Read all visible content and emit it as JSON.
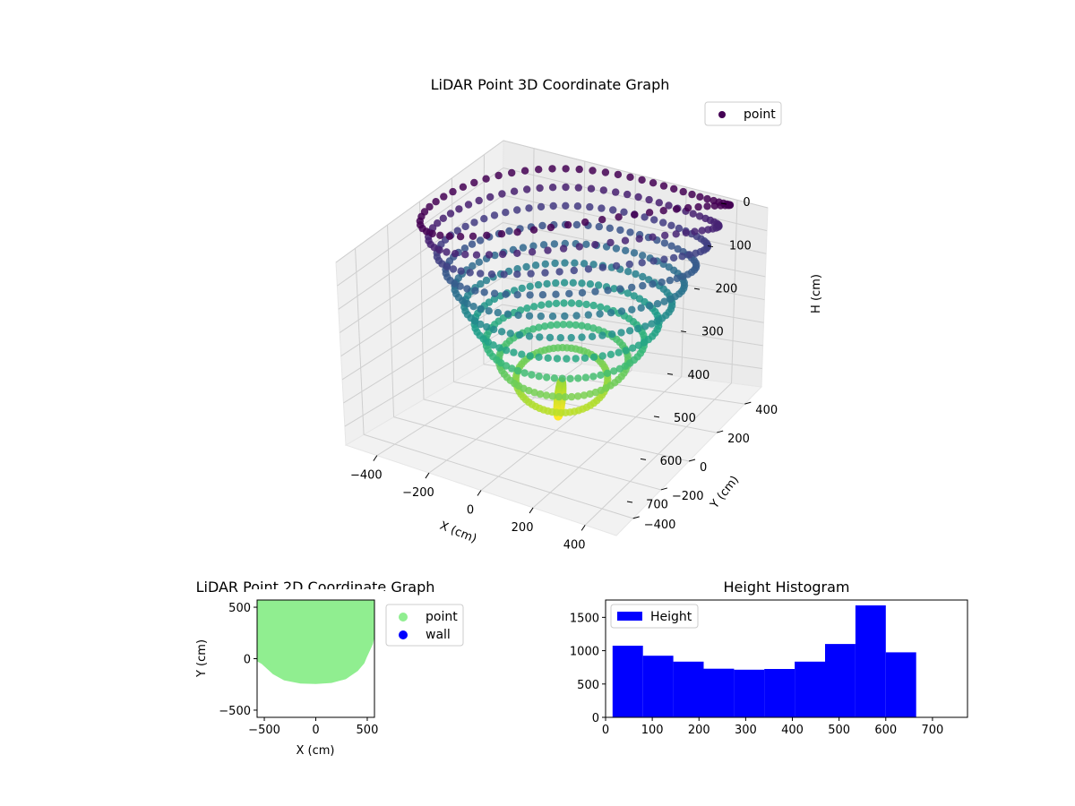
{
  "chart_data": [
    {
      "type": "scatter",
      "projection": "3d",
      "title": "LiDAR Point 3D Coordinate Graph",
      "xlabel": "X (cm)",
      "ylabel": "Y (cm)",
      "zlabel": "H (cm)",
      "xticks": [
        -400,
        -200,
        0,
        200,
        400
      ],
      "yticks": [
        -400,
        -200,
        0,
        200,
        400
      ],
      "zticks": [
        0,
        100,
        200,
        300,
        400,
        500,
        600,
        700
      ],
      "xlim": [
        -520,
        520
      ],
      "ylim": [
        -520,
        520
      ],
      "zlim": [
        0,
        780
      ],
      "z_inverted": true,
      "colormap": "viridis",
      "legend": {
        "entries": [
          "point"
        ],
        "placement": "upper-right"
      },
      "grid": true,
      "series": [
        {
          "name": "point",
          "color": "#440154",
          "shape": "bowl",
          "rim_radius": 460,
          "max_depth": 730
        }
      ]
    },
    {
      "type": "scatter",
      "title": "LiDAR Point 2D Coordinate Graph",
      "xlabel": "X (cm)",
      "ylabel": "Y (cm)",
      "xticks": [
        -500,
        0,
        500
      ],
      "yticks": [
        -500,
        0,
        500
      ],
      "xlim": [
        -570,
        570
      ],
      "ylim": [
        -570,
        570
      ],
      "legend": {
        "entries": [
          "point",
          "wall"
        ],
        "placement": "outside-right"
      },
      "series": [
        {
          "name": "point",
          "color": "#90ee90",
          "outline": [
            [
              -570,
              570
            ],
            [
              -570,
              120
            ],
            [
              -560,
              0
            ],
            [
              -510,
              -30
            ],
            [
              -400,
              -130
            ],
            [
              -300,
              -185
            ],
            [
              -150,
              -215
            ],
            [
              0,
              -220
            ],
            [
              150,
              -210
            ],
            [
              280,
              -175
            ],
            [
              390,
              -100
            ],
            [
              450,
              -30
            ],
            [
              470,
              20
            ],
            [
              530,
              150
            ],
            [
              570,
              330
            ],
            [
              570,
              570
            ]
          ]
        },
        {
          "name": "wall",
          "color": "#0000ff",
          "points": []
        }
      ]
    },
    {
      "type": "bar",
      "subtype": "histogram",
      "title": "Height Histogram",
      "xlabel": "",
      "ylabel": "",
      "xticks": [
        0,
        100,
        200,
        300,
        400,
        500,
        600,
        700
      ],
      "yticks": [
        0,
        500,
        1000,
        1500
      ],
      "xlim": [
        0,
        775
      ],
      "ylim": [
        0,
        1760
      ],
      "color": "#0000ff",
      "legend": {
        "entries": [
          "Height"
        ],
        "placement": "upper-left"
      },
      "bins": [
        {
          "x0": 15,
          "x1": 80,
          "value": 1075
        },
        {
          "x0": 80,
          "x1": 145,
          "value": 925
        },
        {
          "x0": 145,
          "x1": 210,
          "value": 835
        },
        {
          "x0": 210,
          "x1": 275,
          "value": 730
        },
        {
          "x0": 275,
          "x1": 340,
          "value": 715
        },
        {
          "x0": 340,
          "x1": 405,
          "value": 725
        },
        {
          "x0": 405,
          "x1": 470,
          "value": 835
        },
        {
          "x0": 470,
          "x1": 535,
          "value": 1100
        },
        {
          "x0": 535,
          "x1": 600,
          "value": 1680
        },
        {
          "x0": 600,
          "x1": 665,
          "value": 975
        }
      ]
    }
  ]
}
